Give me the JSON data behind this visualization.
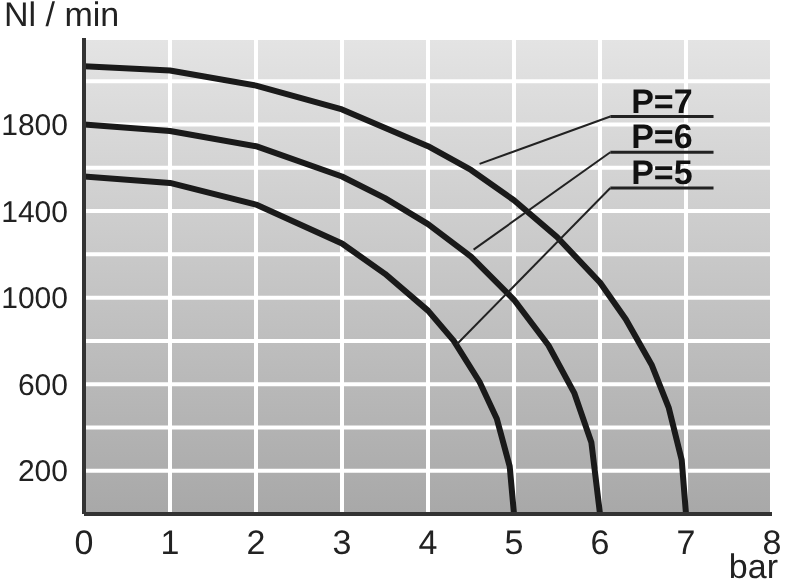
{
  "chart_data": {
    "type": "line",
    "xlabel": "bar",
    "ylabel": "Nl / min",
    "xlim": [
      0,
      8
    ],
    "xticks": [
      0,
      1,
      2,
      3,
      4,
      5,
      6,
      7,
      8
    ],
    "ylim": [
      0,
      2200
    ],
    "yticks": [
      {
        "value": 0,
        "label": null
      },
      200,
      {
        "value": 400,
        "label": null
      },
      600,
      {
        "value": 800,
        "label": null
      },
      1000,
      {
        "value": 1200,
        "label": null
      },
      1400,
      {
        "value": 1600,
        "label": null
      },
      1800,
      {
        "value": 2000,
        "label": null
      },
      {
        "value": 2200,
        "label": null
      }
    ],
    "grid": true,
    "marker": "none",
    "line_style": "solid",
    "series": [
      {
        "color": "#1a1a1a",
        "x": [
          0,
          1,
          2,
          3,
          4,
          4.5,
          5,
          5.5,
          6,
          6.3,
          6.6,
          6.8,
          6.95,
          7
        ],
        "values": [
          2070,
          2050,
          1980,
          1870,
          1700,
          1590,
          1450,
          1280,
          1070,
          900,
          690,
          490,
          250,
          0
        ]
      },
      {
        "color": "#1a1a1a",
        "x": [
          0,
          1,
          2,
          3,
          3.5,
          4,
          4.5,
          5,
          5.4,
          5.7,
          5.9,
          6
        ],
        "values": [
          1800,
          1770,
          1700,
          1560,
          1460,
          1340,
          1190,
          990,
          780,
          560,
          330,
          0
        ]
      },
      {
        "color": "#1a1a1a",
        "x": [
          0,
          1,
          2,
          3,
          3.5,
          4,
          4.3,
          4.6,
          4.8,
          4.95,
          5
        ],
        "values": [
          1560,
          1530,
          1430,
          1250,
          1110,
          940,
          800,
          610,
          440,
          220,
          0
        ]
      }
    ],
    "annotations": [
      {
        "text": "P=7",
        "x": 4.6,
        "y": 1618
      },
      {
        "text": "P=6",
        "x": 4.53,
        "y": 1222
      },
      {
        "text": "P=5",
        "x": 4.33,
        "y": 782
      }
    ]
  }
}
